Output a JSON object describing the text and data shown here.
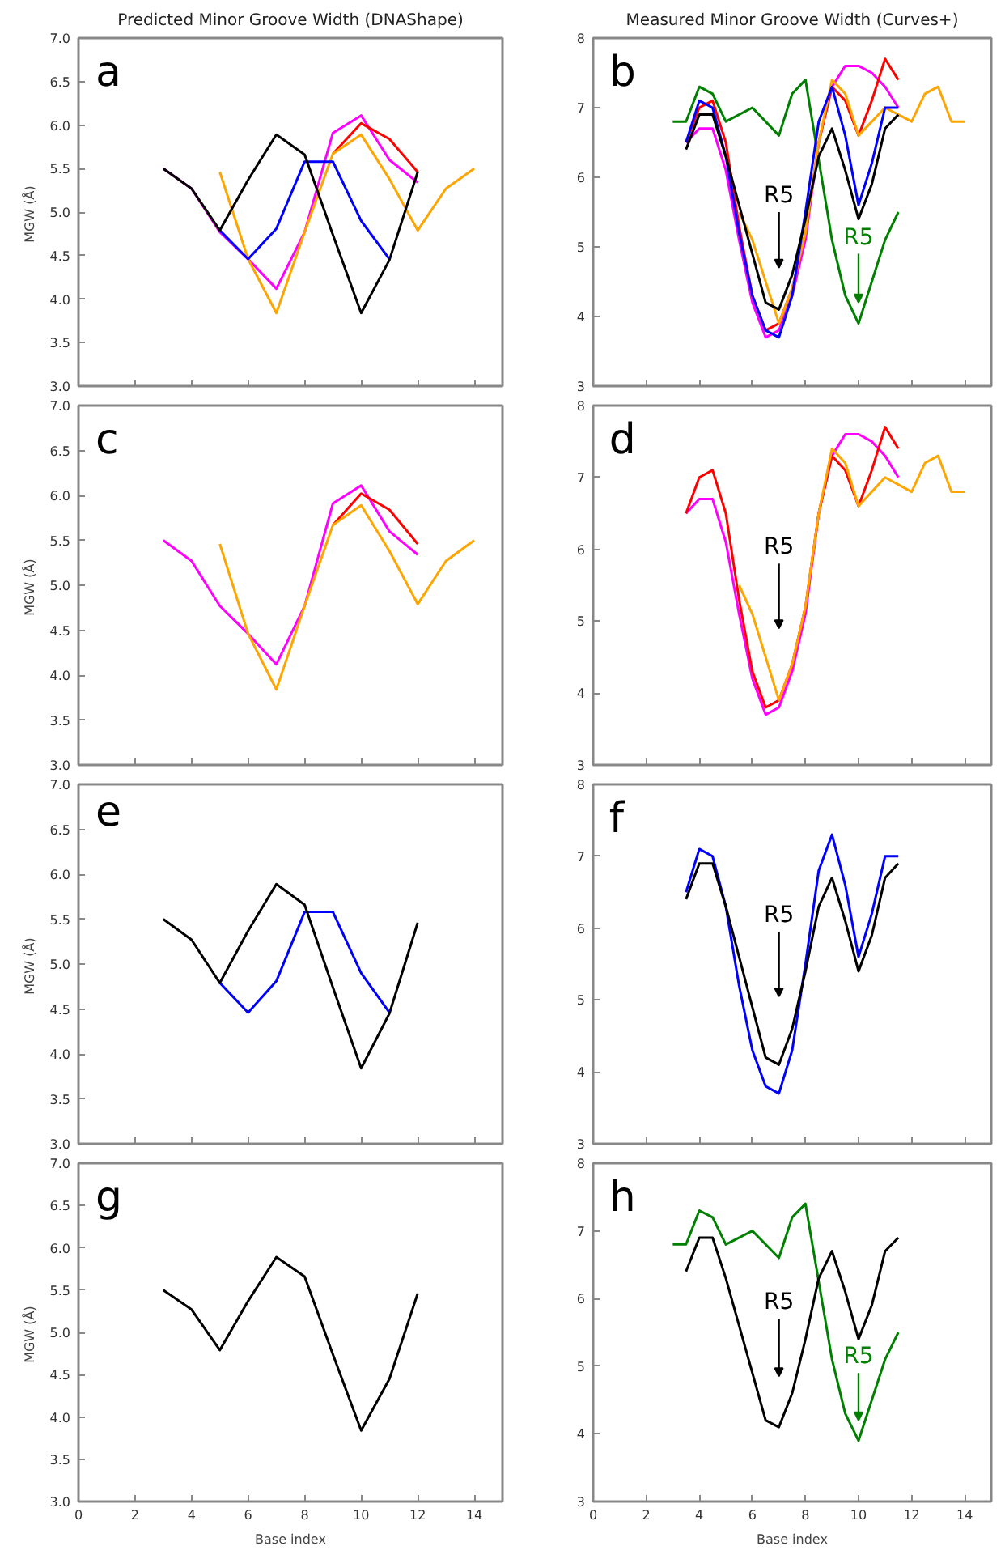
{
  "chart_data": [
    {
      "type": "line",
      "title": "Predicted Minor Groove Width (DNAShape)",
      "ylabel": "MGW  (Å)",
      "xlim": [
        0,
        15
      ],
      "ylim": [
        3,
        7
      ],
      "xticks": [
        0,
        2,
        4,
        6,
        8,
        10,
        12,
        14
      ],
      "yticks": [
        {
          "value": 3,
          "label": "3.0"
        },
        3.5,
        {
          "value": 4,
          "label": "4.0"
        },
        4.5,
        {
          "value": 5,
          "label": "5.0"
        },
        5.5,
        {
          "value": 6,
          "label": "6.0"
        },
        6.5,
        {
          "value": 7,
          "label": "7.0"
        }
      ],
      "tick_labels": "y",
      "annotations": [
        "a"
      ],
      "series": [
        {
          "color": "#ff00ff",
          "x": [
            3,
            4,
            5,
            6,
            7,
            8,
            9,
            10,
            11,
            12
          ],
          "values": [
            5.5,
            5.27,
            4.77,
            4.46,
            4.12,
            4.77,
            5.91,
            6.11,
            5.6,
            5.34
          ]
        },
        {
          "color": "#ff0000",
          "x": [
            9,
            10,
            11,
            12
          ],
          "values": [
            5.67,
            6.02,
            5.84,
            5.46
          ]
        },
        {
          "color": "#ffa500",
          "x": [
            5,
            6,
            7,
            8,
            9,
            10,
            11,
            12,
            13,
            14
          ],
          "values": [
            5.46,
            4.46,
            3.84,
            4.77,
            5.67,
            5.89,
            5.38,
            4.79,
            5.27,
            5.5
          ]
        },
        {
          "color": "#0000ff",
          "x": [
            5,
            6,
            7,
            8,
            9,
            10,
            11
          ],
          "values": [
            4.79,
            4.46,
            4.81,
            5.58,
            5.58,
            4.9,
            4.46
          ]
        },
        {
          "color": "#000000",
          "x": [
            3,
            4,
            5,
            6,
            7,
            8,
            9,
            10,
            11,
            12
          ],
          "values": [
            5.5,
            5.27,
            4.79,
            5.37,
            5.89,
            5.66,
            4.74,
            3.84,
            4.45,
            5.46
          ]
        }
      ]
    },
    {
      "type": "line",
      "title": "Measured Minor Groove Width (Curves+)",
      "xlim": [
        0,
        15
      ],
      "ylim": [
        3,
        8
      ],
      "xticks": [
        0,
        2,
        4,
        6,
        8,
        10,
        12,
        14
      ],
      "yticks": [
        3,
        4,
        5,
        6,
        7,
        8
      ],
      "tick_labels": "y",
      "annotations": [
        "b",
        "R5",
        {
          "text": "R5",
          "x": 10,
          "y": 4.2
        }
      ],
      "series": [
        {
          "color": "#008000",
          "x": [
            3,
            3.5,
            4,
            4.5,
            5,
            6,
            7,
            7.5,
            8,
            9,
            9.5,
            10,
            10.5,
            11,
            11.5
          ],
          "values": [
            6.8,
            6.8,
            7.3,
            7.2,
            6.8,
            7.0,
            6.6,
            7.2,
            7.4,
            5.1,
            4.3,
            3.9,
            4.5,
            5.1,
            5.5
          ]
        },
        {
          "color": "#ff00ff",
          "x": [
            3.5,
            4,
            4.5,
            5,
            5.5,
            6,
            6.5,
            7,
            7.5,
            8,
            8.5,
            9,
            9.5,
            10,
            10.5,
            11,
            11.5
          ],
          "values": [
            6.5,
            6.7,
            6.7,
            6.1,
            5.1,
            4.2,
            3.7,
            3.8,
            4.3,
            5.1,
            6.5,
            7.3,
            7.6,
            7.6,
            7.5,
            7.3,
            7.0
          ]
        },
        {
          "color": "#ff0000",
          "x": [
            3.5,
            4,
            4.5,
            5,
            5.5,
            6,
            6.5,
            7,
            7.5,
            8,
            8.5,
            9,
            9.5,
            10,
            10.5,
            11,
            11.5
          ],
          "values": [
            6.5,
            7.0,
            7.1,
            6.5,
            5.3,
            4.3,
            3.8,
            3.9,
            4.4,
            5.2,
            6.5,
            7.3,
            7.1,
            6.6,
            7.1,
            7.7,
            7.4
          ]
        },
        {
          "color": "#ffa500",
          "x": [
            5.5,
            6,
            7,
            7.5,
            8,
            8.5,
            9,
            9.5,
            10,
            11,
            12,
            12.5,
            13,
            13.5,
            14
          ],
          "values": [
            5.5,
            5.1,
            3.9,
            4.4,
            5.2,
            6.5,
            7.4,
            7.2,
            6.6,
            7.0,
            6.8,
            7.2,
            7.3,
            6.8,
            6.8
          ]
        },
        {
          "color": "#0000ff",
          "x": [
            3.5,
            4,
            4.5,
            5,
            5.5,
            6,
            6.5,
            7,
            7.5,
            8,
            8.5,
            9,
            9.5,
            10,
            10.5,
            11,
            11.5
          ],
          "values": [
            6.5,
            7.1,
            7.0,
            6.3,
            5.2,
            4.3,
            3.8,
            3.7,
            4.3,
            5.5,
            6.8,
            7.3,
            6.6,
            5.6,
            6.2,
            7.0,
            7.0
          ]
        },
        {
          "color": "#000000",
          "x": [
            3.5,
            4,
            4.5,
            5,
            5.5,
            6,
            6.5,
            7,
            7.5,
            8,
            8.5,
            9,
            9.5,
            10,
            10.5,
            11,
            11.5
          ],
          "values": [
            6.4,
            6.9,
            6.9,
            6.3,
            5.6,
            4.9,
            4.2,
            4.1,
            4.6,
            5.4,
            6.3,
            6.7,
            6.1,
            5.4,
            5.9,
            6.7,
            6.9
          ]
        }
      ]
    },
    {
      "type": "line",
      "ylabel": "MGW  (Å)",
      "xlim": [
        0,
        15
      ],
      "ylim": [
        3,
        7
      ],
      "xticks": [
        0,
        2,
        4,
        6,
        8,
        10,
        12,
        14
      ],
      "yticks": [
        {
          "value": 3,
          "label": "3.0"
        },
        3.5,
        {
          "value": 4,
          "label": "4.0"
        },
        4.5,
        {
          "value": 5,
          "label": "5.0"
        },
        5.5,
        {
          "value": 6,
          "label": "6.0"
        },
        6.5,
        {
          "value": 7,
          "label": "7.0"
        }
      ],
      "tick_labels": "y",
      "annotations": [
        "c"
      ],
      "series": [
        {
          "color": "#ff00ff",
          "x": [
            3,
            4,
            5,
            6,
            7,
            8,
            9,
            10,
            11,
            12
          ],
          "values": [
            5.5,
            5.27,
            4.77,
            4.46,
            4.12,
            4.77,
            5.91,
            6.11,
            5.6,
            5.34
          ]
        },
        {
          "color": "#ff0000",
          "x": [
            9,
            10,
            11,
            12
          ],
          "values": [
            5.67,
            6.02,
            5.84,
            5.46
          ]
        },
        {
          "color": "#ffa500",
          "x": [
            5,
            6,
            7,
            8,
            9,
            10,
            11,
            12,
            13,
            14
          ],
          "values": [
            5.46,
            4.46,
            3.84,
            4.77,
            5.67,
            5.89,
            5.38,
            4.79,
            5.27,
            5.5
          ]
        }
      ]
    },
    {
      "type": "line",
      "xlim": [
        0,
        15
      ],
      "ylim": [
        3,
        8
      ],
      "xticks": [
        0,
        2,
        4,
        6,
        8,
        10,
        12,
        14
      ],
      "yticks": [
        3,
        4,
        5,
        6,
        7,
        8
      ],
      "tick_labels": "y",
      "annotations": [
        "d",
        "R5"
      ],
      "series": [
        {
          "color": "#ff00ff",
          "x": [
            3.5,
            4,
            4.5,
            5,
            5.5,
            6,
            6.5,
            7,
            7.5,
            8,
            8.5,
            9,
            9.5,
            10,
            10.5,
            11,
            11.5
          ],
          "values": [
            6.5,
            6.7,
            6.7,
            6.1,
            5.1,
            4.2,
            3.7,
            3.8,
            4.3,
            5.1,
            6.5,
            7.3,
            7.6,
            7.6,
            7.5,
            7.3,
            7.0
          ]
        },
        {
          "color": "#ff0000",
          "x": [
            3.5,
            4,
            4.5,
            5,
            5.5,
            6,
            6.5,
            7,
            7.5,
            8,
            8.5,
            9,
            9.5,
            10,
            10.5,
            11,
            11.5
          ],
          "values": [
            6.5,
            7.0,
            7.1,
            6.5,
            5.3,
            4.3,
            3.8,
            3.9,
            4.4,
            5.2,
            6.5,
            7.3,
            7.1,
            6.6,
            7.1,
            7.7,
            7.4
          ]
        },
        {
          "color": "#ffa500",
          "x": [
            5.5,
            6,
            7,
            7.5,
            8,
            8.5,
            9,
            9.5,
            10,
            11,
            12,
            12.5,
            13,
            13.5,
            14
          ],
          "values": [
            5.5,
            5.1,
            3.9,
            4.4,
            5.2,
            6.5,
            7.4,
            7.2,
            6.6,
            7.0,
            6.8,
            7.2,
            7.3,
            6.8,
            6.8
          ]
        }
      ]
    },
    {
      "type": "line",
      "ylabel": "MGW  (Å)",
      "xlim": [
        0,
        15
      ],
      "ylim": [
        3,
        7
      ],
      "xticks": [
        0,
        2,
        4,
        6,
        8,
        10,
        12,
        14
      ],
      "yticks": [
        {
          "value": 3,
          "label": "3.0"
        },
        3.5,
        {
          "value": 4,
          "label": "4.0"
        },
        4.5,
        {
          "value": 5,
          "label": "5.0"
        },
        5.5,
        {
          "value": 6,
          "label": "6.0"
        },
        6.5,
        {
          "value": 7,
          "label": "7.0"
        }
      ],
      "tick_labels": "y",
      "annotations": [
        "e"
      ],
      "series": [
        {
          "color": "#0000ff",
          "x": [
            5,
            6,
            7,
            8,
            9,
            10,
            11
          ],
          "values": [
            4.79,
            4.46,
            4.81,
            5.58,
            5.58,
            4.9,
            4.46
          ]
        },
        {
          "color": "#000000",
          "x": [
            3,
            4,
            5,
            6,
            7,
            8,
            9,
            10,
            11,
            12
          ],
          "values": [
            5.5,
            5.27,
            4.79,
            5.37,
            5.89,
            5.66,
            4.74,
            3.84,
            4.45,
            5.46
          ]
        }
      ]
    },
    {
      "type": "line",
      "xlim": [
        0,
        15
      ],
      "ylim": [
        3,
        8
      ],
      "xticks": [
        0,
        2,
        4,
        6,
        8,
        10,
        12,
        14
      ],
      "yticks": [
        3,
        4,
        5,
        6,
        7,
        8
      ],
      "tick_labels": "y",
      "annotations": [
        "f",
        "R5"
      ],
      "series": [
        {
          "color": "#0000ff",
          "x": [
            3.5,
            4,
            4.5,
            5,
            5.5,
            6,
            6.5,
            7,
            7.5,
            8,
            8.5,
            9,
            9.5,
            10,
            10.5,
            11,
            11.5
          ],
          "values": [
            6.5,
            7.1,
            7.0,
            6.3,
            5.2,
            4.3,
            3.8,
            3.7,
            4.3,
            5.5,
            6.8,
            7.3,
            6.6,
            5.6,
            6.2,
            7.0,
            7.0
          ]
        },
        {
          "color": "#000000",
          "x": [
            3.5,
            4,
            4.5,
            5,
            5.5,
            6,
            6.5,
            7,
            7.5,
            8,
            8.5,
            9,
            9.5,
            10,
            10.5,
            11,
            11.5
          ],
          "values": [
            6.4,
            6.9,
            6.9,
            6.3,
            5.6,
            4.9,
            4.2,
            4.1,
            4.6,
            5.4,
            6.3,
            6.7,
            6.1,
            5.4,
            5.9,
            6.7,
            6.9
          ]
        }
      ]
    },
    {
      "type": "line",
      "xlabel": "Base index",
      "ylabel": "MGW  (Å)",
      "xlim": [
        0,
        15
      ],
      "ylim": [
        3,
        7
      ],
      "xticks": [
        0,
        2,
        4,
        6,
        8,
        10,
        12,
        14
      ],
      "yticks": [
        {
          "value": 3,
          "label": "3.0"
        },
        3.5,
        {
          "value": 4,
          "label": "4.0"
        },
        4.5,
        {
          "value": 5,
          "label": "5.0"
        },
        5.5,
        {
          "value": 6,
          "label": "6.0"
        },
        6.5,
        {
          "value": 7,
          "label": "7.0"
        }
      ],
      "annotations": [
        "g"
      ],
      "series": [
        {
          "color": "#000000",
          "x": [
            3,
            4,
            5,
            6,
            7,
            8,
            9,
            10,
            11,
            12
          ],
          "values": [
            5.5,
            5.27,
            4.79,
            5.37,
            5.89,
            5.66,
            4.74,
            3.84,
            4.45,
            5.46
          ]
        }
      ]
    },
    {
      "type": "line",
      "xlabel": "Base index",
      "xlim": [
        0,
        15
      ],
      "ylim": [
        3,
        8
      ],
      "xticks": [
        0,
        2,
        4,
        6,
        8,
        10,
        12,
        14
      ],
      "yticks": [
        3,
        4,
        5,
        6,
        7,
        8
      ],
      "annotations": [
        "h",
        "R5",
        {
          "text": "R5",
          "x": 10,
          "y": 4.2
        }
      ],
      "series": [
        {
          "color": "#008000",
          "x": [
            3,
            3.5,
            4,
            4.5,
            5,
            6,
            7,
            7.5,
            8,
            9,
            9.5,
            10,
            10.5,
            11,
            11.5
          ],
          "values": [
            6.8,
            6.8,
            7.3,
            7.2,
            6.8,
            7.0,
            6.6,
            7.2,
            7.4,
            5.1,
            4.3,
            3.9,
            4.5,
            5.1,
            5.5
          ]
        },
        {
          "color": "#000000",
          "x": [
            3.5,
            4,
            4.5,
            5,
            5.5,
            6,
            6.5,
            7,
            7.5,
            8,
            8.5,
            9,
            9.5,
            10,
            10.5,
            11,
            11.5
          ],
          "values": [
            6.4,
            6.9,
            6.9,
            6.3,
            5.6,
            4.9,
            4.2,
            4.1,
            4.6,
            5.4,
            6.3,
            6.7,
            6.1,
            5.4,
            5.9,
            6.7,
            6.9
          ]
        }
      ]
    }
  ]
}
